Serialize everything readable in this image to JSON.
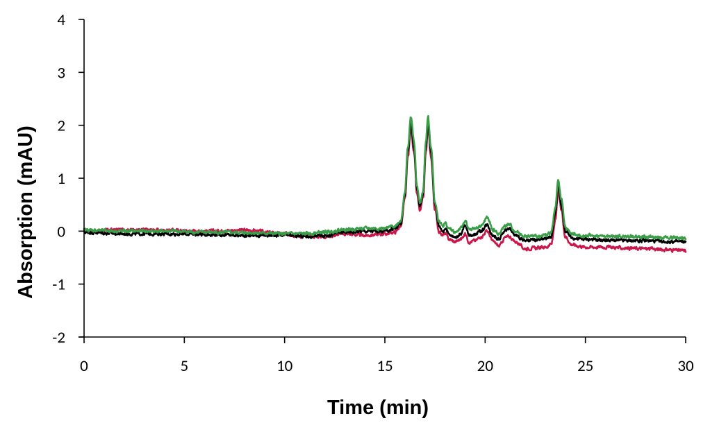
{
  "chart_data": {
    "type": "line",
    "title": "",
    "xlabel": "Time (min)",
    "ylabel": "Absorption (mAU)",
    "xlim": [
      0,
      30
    ],
    "ylim": [
      -2,
      4
    ],
    "xticks": [
      0,
      5,
      10,
      15,
      20,
      25,
      30
    ],
    "yticks": [
      -2,
      -1,
      0,
      1,
      2,
      3,
      4
    ],
    "grid": false,
    "legend": null,
    "series": [
      {
        "name": "red trace",
        "color": "#C8174A",
        "x": [
          0,
          2,
          4,
          6,
          8,
          10,
          11,
          12,
          13,
          14,
          15,
          15.5,
          15.8,
          16.0,
          16.15,
          16.3,
          16.45,
          16.6,
          16.75,
          16.9,
          17.05,
          17.15,
          17.3,
          17.5,
          17.7,
          17.9,
          18.0,
          18.2,
          18.5,
          18.8,
          19.0,
          19.2,
          19.5,
          19.8,
          20.1,
          20.4,
          20.7,
          21.0,
          21.2,
          21.5,
          22.0,
          22.5,
          23.0,
          23.3,
          23.5,
          23.65,
          23.8,
          24.0,
          24.3,
          24.7,
          25,
          26,
          27,
          28,
          29,
          30
        ],
        "y": [
          0.0,
          0.03,
          0.02,
          0.0,
          0.02,
          -0.05,
          -0.1,
          -0.1,
          -0.05,
          -0.08,
          -0.05,
          -0.02,
          0.1,
          0.6,
          1.4,
          1.95,
          1.5,
          0.7,
          0.38,
          0.6,
          1.5,
          1.95,
          1.4,
          0.4,
          0.0,
          -0.08,
          -0.05,
          -0.15,
          -0.2,
          -0.15,
          -0.05,
          -0.2,
          -0.18,
          -0.1,
          0.0,
          -0.2,
          -0.28,
          -0.12,
          -0.1,
          -0.2,
          -0.33,
          -0.32,
          -0.3,
          -0.25,
          0.2,
          0.75,
          0.4,
          -0.1,
          -0.25,
          -0.28,
          -0.3,
          -0.3,
          -0.32,
          -0.33,
          -0.35,
          -0.37
        ]
      },
      {
        "name": "black trace",
        "color": "#000000",
        "x": [
          0,
          2,
          4,
          6,
          8,
          10,
          11,
          12,
          13,
          14,
          15,
          15.5,
          15.8,
          16.0,
          16.15,
          16.3,
          16.45,
          16.6,
          16.75,
          16.9,
          17.05,
          17.15,
          17.3,
          17.5,
          17.7,
          17.9,
          18.0,
          18.2,
          18.5,
          18.8,
          19.0,
          19.2,
          19.5,
          19.8,
          20.1,
          20.4,
          20.7,
          21.0,
          21.2,
          21.5,
          22.0,
          22.5,
          23.0,
          23.3,
          23.5,
          23.65,
          23.8,
          24.0,
          24.3,
          24.7,
          25,
          26,
          27,
          28,
          29,
          30
        ],
        "y": [
          -0.02,
          -0.05,
          -0.05,
          -0.06,
          -0.08,
          -0.08,
          -0.1,
          -0.08,
          -0.02,
          0.0,
          0.0,
          0.05,
          0.15,
          0.7,
          1.5,
          2.05,
          1.6,
          0.8,
          0.47,
          0.7,
          1.6,
          2.05,
          1.5,
          0.5,
          0.1,
          0.0,
          0.05,
          -0.05,
          -0.12,
          -0.05,
          0.1,
          -0.08,
          -0.05,
          0.0,
          0.12,
          -0.08,
          -0.15,
          0.02,
          0.05,
          -0.08,
          -0.18,
          -0.17,
          -0.15,
          -0.1,
          0.35,
          0.88,
          0.5,
          0.0,
          -0.12,
          -0.15,
          -0.15,
          -0.17,
          -0.18,
          -0.18,
          -0.2,
          -0.2
        ]
      },
      {
        "name": "green trace",
        "color": "#3A9E48",
        "x": [
          0,
          2,
          4,
          6,
          8,
          10,
          11,
          12,
          13,
          14,
          15,
          15.5,
          15.8,
          16.0,
          16.15,
          16.3,
          16.45,
          16.6,
          16.75,
          16.9,
          17.05,
          17.15,
          17.3,
          17.5,
          17.7,
          17.9,
          18.0,
          18.2,
          18.5,
          18.8,
          19.0,
          19.2,
          19.5,
          19.8,
          20.1,
          20.4,
          20.7,
          21.0,
          21.2,
          21.5,
          22.0,
          22.5,
          23.0,
          23.3,
          23.5,
          23.65,
          23.8,
          24.0,
          24.3,
          24.7,
          25,
          26,
          27,
          28,
          29,
          30
        ],
        "y": [
          0.02,
          0.0,
          0.0,
          -0.02,
          -0.03,
          -0.05,
          -0.05,
          -0.02,
          0.03,
          0.05,
          0.05,
          0.1,
          0.2,
          0.75,
          1.6,
          2.16,
          1.7,
          0.85,
          0.52,
          0.75,
          1.7,
          2.16,
          1.6,
          0.55,
          0.18,
          0.1,
          0.15,
          0.05,
          -0.02,
          0.05,
          0.2,
          0.02,
          0.05,
          0.1,
          0.25,
          0.02,
          -0.05,
          0.1,
          0.12,
          0.0,
          -0.1,
          -0.1,
          -0.08,
          -0.02,
          0.45,
          0.98,
          0.6,
          0.08,
          -0.05,
          -0.08,
          -0.08,
          -0.1,
          -0.1,
          -0.11,
          -0.12,
          -0.13
        ]
      }
    ]
  }
}
